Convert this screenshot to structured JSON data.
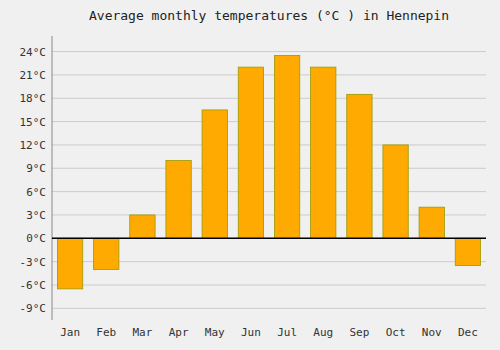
{
  "chart_data": {
    "type": "bar",
    "title": "Average monthly temperatures (°C ) in Hennepin",
    "categories": [
      "Jan",
      "Feb",
      "Mar",
      "Apr",
      "May",
      "Jun",
      "Jul",
      "Aug",
      "Sep",
      "Oct",
      "Nov",
      "Dec"
    ],
    "values": [
      -6.5,
      -4.0,
      3.0,
      10.0,
      16.5,
      22.0,
      23.5,
      22.0,
      18.5,
      12.0,
      4.0,
      -3.5
    ],
    "color": "#FFAA00",
    "ylim": [
      -10.5,
      26
    ],
    "yticks": [
      {
        "value": -9,
        "label": "-9°C"
      },
      {
        "value": -6,
        "label": "-6°C"
      },
      {
        "value": -3,
        "label": "-3°C"
      },
      {
        "value": 0,
        "label": "0°C"
      },
      {
        "value": 3,
        "label": "3°C"
      },
      {
        "value": 6,
        "label": "6°C"
      },
      {
        "value": 9,
        "label": "9°C"
      },
      {
        "value": 12,
        "label": "12°C"
      },
      {
        "value": 15,
        "label": "15°C"
      },
      {
        "value": 18,
        "label": "18°C"
      },
      {
        "value": 21,
        "label": "21°C"
      },
      {
        "value": 24,
        "label": "24°C"
      }
    ],
    "grid": true
  }
}
